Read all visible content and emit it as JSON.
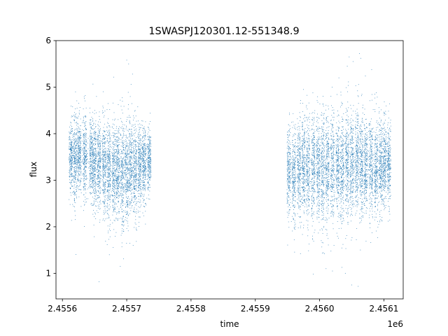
{
  "chart_data": {
    "type": "scatter",
    "title": "1SWASPJ120301.12-551348.9",
    "xlabel": "time",
    "ylabel": "flux",
    "x_offset_label": "1e6",
    "xlim": [
      2455590,
      2456130
    ],
    "ylim": [
      0.45,
      6.0
    ],
    "x_ticks": [
      2455600,
      2455700,
      2455800,
      2455900,
      2456000,
      2456100
    ],
    "x_tick_labels": [
      "2.4556",
      "2.4557",
      "2.4558",
      "2.4559",
      "2.4560",
      "2.4561"
    ],
    "y_ticks": [
      1,
      2,
      3,
      4,
      5,
      6
    ],
    "y_tick_labels": [
      "1",
      "2",
      "3",
      "4",
      "5",
      "6"
    ],
    "grid": false,
    "marker_color": "#1f77b4",
    "series": [
      {
        "segments": [
          {
            "x_start": 2455613,
            "x_end": 2455735,
            "flux_center": 3.4,
            "flux_spread": 0.42
          },
          {
            "x_start": 2455952,
            "x_end": 2456108,
            "flux_center": 3.3,
            "flux_spread": 0.5
          }
        ],
        "observation_columns": [
          [
            2455613,
            3.55,
            0.35
          ],
          [
            2455620,
            3.5,
            0.5
          ],
          [
            2455626,
            3.6,
            0.38
          ],
          [
            2455635,
            3.55,
            0.4
          ],
          [
            2455645,
            3.45,
            0.45
          ],
          [
            2455650,
            3.35,
            0.5
          ],
          [
            2455657,
            3.35,
            0.45
          ],
          [
            2455665,
            3.3,
            0.5
          ],
          [
            2455672,
            3.2,
            0.55
          ],
          [
            2455680,
            3.15,
            0.55
          ],
          [
            2455686,
            3.2,
            0.5
          ],
          [
            2455693,
            3.05,
            0.6
          ],
          [
            2455700,
            3.1,
            0.55
          ],
          [
            2455706,
            3.25,
            0.5
          ],
          [
            2455713,
            3.2,
            0.5
          ],
          [
            2455720,
            3.25,
            0.45
          ],
          [
            2455727,
            3.3,
            0.4
          ],
          [
            2455735,
            3.4,
            0.35
          ],
          [
            2455952,
            3.15,
            0.45
          ],
          [
            2455960,
            3.1,
            0.5
          ],
          [
            2455968,
            3.2,
            0.55
          ],
          [
            2455975,
            3.3,
            0.5
          ],
          [
            2455982,
            3.2,
            0.55
          ],
          [
            2455990,
            3.25,
            0.6
          ],
          [
            2455998,
            3.3,
            0.55
          ],
          [
            2456005,
            3.2,
            0.6
          ],
          [
            2456012,
            3.3,
            0.55
          ],
          [
            2456020,
            3.35,
            0.6
          ],
          [
            2456028,
            3.3,
            0.55
          ],
          [
            2456035,
            3.25,
            0.6
          ],
          [
            2456043,
            3.35,
            0.6
          ],
          [
            2456050,
            3.3,
            0.55
          ],
          [
            2456058,
            3.4,
            0.6
          ],
          [
            2456065,
            3.3,
            0.55
          ],
          [
            2456072,
            3.35,
            0.5
          ],
          [
            2456080,
            3.3,
            0.55
          ],
          [
            2456088,
            3.2,
            0.5
          ],
          [
            2456095,
            3.3,
            0.45
          ],
          [
            2456101,
            3.35,
            0.45
          ],
          [
            2456108,
            3.35,
            0.4
          ]
        ],
        "outliers": [
          [
            2455700,
            5.58
          ],
          [
            2455703,
            5.5
          ],
          [
            2455709,
            5.28
          ],
          [
            2455690,
            4.72
          ],
          [
            2455653,
            4.8
          ],
          [
            2455690,
            1.15
          ],
          [
            2455657,
            0.82
          ],
          [
            2455673,
            1.4
          ],
          [
            2455710,
            1.6
          ],
          [
            2456043,
            5.45
          ],
          [
            2456046,
            5.65
          ],
          [
            2456052,
            5.55
          ],
          [
            2456062,
            5.72
          ],
          [
            2456064,
            5.62
          ],
          [
            2456050,
            0.75
          ],
          [
            2456060,
            0.72
          ],
          [
            2456040,
            1.0
          ],
          [
            2455975,
            4.95
          ],
          [
            2456030,
            5.2
          ],
          [
            2455990,
            0.98
          ],
          [
            2456010,
            1.1
          ],
          [
            2456020,
            1.05
          ]
        ]
      }
    ]
  }
}
